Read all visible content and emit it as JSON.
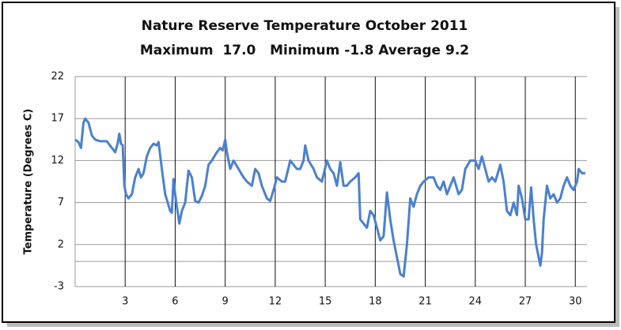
{
  "chart_data": {
    "type": "line",
    "title": "Nature Reserve Temperature October 2011",
    "subtitle": "Maximum  17.0   Minimum -1.8 Average 9.2",
    "y_label": "Temperature (Degrees C)",
    "xlim": [
      0,
      30.7
    ],
    "xticks": [
      3,
      6,
      9,
      12,
      15,
      18,
      21,
      24,
      27,
      30
    ],
    "ylim": [
      -3,
      22
    ],
    "yticks": [
      -3,
      2,
      7,
      12,
      17,
      22
    ],
    "grid": true,
    "x": [
      0,
      0.2,
      0.35,
      0.5,
      0.6,
      0.8,
      1.0,
      1.2,
      1.5,
      1.9,
      2.2,
      2.4,
      2.55,
      2.65,
      2.75,
      2.85,
      2.95,
      3.05,
      3.2,
      3.4,
      3.6,
      3.8,
      3.95,
      4.1,
      4.3,
      4.5,
      4.7,
      4.9,
      5.0,
      5.2,
      5.4,
      5.55,
      5.7,
      5.8,
      5.9,
      6.0,
      6.1,
      6.25,
      6.4,
      6.6,
      6.8,
      7.0,
      7.2,
      7.4,
      7.6,
      7.8,
      8.0,
      8.2,
      8.5,
      8.7,
      8.85,
      9.0,
      9.1,
      9.3,
      9.5,
      9.8,
      10.1,
      10.3,
      10.6,
      10.8,
      11.0,
      11.2,
      11.5,
      11.7,
      11.9,
      12.1,
      12.4,
      12.6,
      12.9,
      13.1,
      13.3,
      13.5,
      13.7,
      13.8,
      14.0,
      14.3,
      14.5,
      14.8,
      15.1,
      15.3,
      15.5,
      15.7,
      15.9,
      16.1,
      16.3,
      16.5,
      16.8,
      17.0,
      17.1,
      17.3,
      17.5,
      17.7,
      17.9,
      18.1,
      18.3,
      18.5,
      18.7,
      18.9,
      19.1,
      19.5,
      19.7,
      19.9,
      20.1,
      20.3,
      20.5,
      20.7,
      20.9,
      21.2,
      21.5,
      21.7,
      21.9,
      22.1,
      22.3,
      22.5,
      22.7,
      23.0,
      23.2,
      23.4,
      23.7,
      24.0,
      24.2,
      24.4,
      24.6,
      24.8,
      25.0,
      25.2,
      25.5,
      25.7,
      25.9,
      26.1,
      26.3,
      26.5,
      26.6,
      26.8,
      27.0,
      27.2,
      27.35,
      27.5,
      27.65,
      27.8,
      27.9,
      28.0,
      28.1,
      28.3,
      28.5,
      28.7,
      28.9,
      29.1,
      29.3,
      29.5,
      29.7,
      29.9,
      30.1,
      30.2,
      30.4,
      30.6
    ],
    "series": [
      {
        "name": "Temperature",
        "color": "#4a80d0",
        "values": [
          14.5,
          14.2,
          13.5,
          16.5,
          17.0,
          16.5,
          15.0,
          14.5,
          14.3,
          14.3,
          13.5,
          13.0,
          14.0,
          15.2,
          14.0,
          13.8,
          9.0,
          8.0,
          7.5,
          8.0,
          10.0,
          11.0,
          10.0,
          10.5,
          12.5,
          13.5,
          14.0,
          13.8,
          14.2,
          11.0,
          8.0,
          7.0,
          6.0,
          5.8,
          9.8,
          8.0,
          6.5,
          4.5,
          6.0,
          7.0,
          10.8,
          10.0,
          7.2,
          7.0,
          7.8,
          9.0,
          11.5,
          12.0,
          13.0,
          13.5,
          13.2,
          14.5,
          13.0,
          11.0,
          12.0,
          11.0,
          10.0,
          9.5,
          9.0,
          11.0,
          10.5,
          9.0,
          7.5,
          7.2,
          8.5,
          10.0,
          9.5,
          9.5,
          12.0,
          11.5,
          11.0,
          11.0,
          12.0,
          13.8,
          12.0,
          11.0,
          10.0,
          9.5,
          12.0,
          11.0,
          10.5,
          9.0,
          11.8,
          9.0,
          9.0,
          9.5,
          10.0,
          10.5,
          5.0,
          4.5,
          4.0,
          6.0,
          5.5,
          4.0,
          2.5,
          3.0,
          8.2,
          5.0,
          2.5,
          -1.5,
          -1.8,
          2.0,
          7.5,
          6.5,
          8.0,
          9.0,
          9.5,
          10.0,
          10.0,
          9.0,
          8.5,
          9.5,
          8.0,
          9.0,
          10.0,
          8.0,
          8.5,
          11.0,
          12.0,
          12.0,
          11.0,
          12.5,
          11.0,
          9.5,
          10.0,
          9.5,
          11.5,
          9.5,
          6.0,
          5.5,
          7.0,
          5.5,
          9.0,
          7.5,
          5.0,
          5.0,
          8.8,
          5.0,
          2.0,
          0.5,
          -0.5,
          1.0,
          5.0,
          9.0,
          7.5,
          8.0,
          7.0,
          7.5,
          9.0,
          10.0,
          9.0,
          8.5,
          9.5,
          11.0,
          10.5,
          10.5
        ]
      }
    ]
  }
}
